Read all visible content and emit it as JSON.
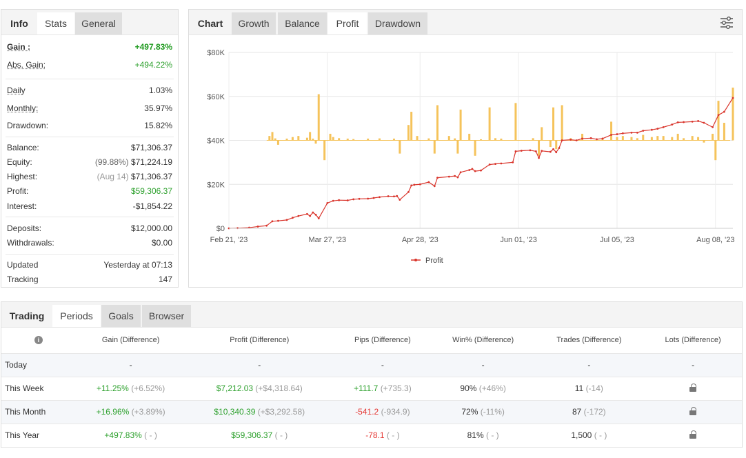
{
  "stats_panel": {
    "tabs": [
      {
        "label": "Info"
      },
      {
        "label": "Stats"
      },
      {
        "label": "General"
      }
    ],
    "gain": {
      "label": "Gain :",
      "value": "+497.83%"
    },
    "abs_gain": {
      "label": "Abs. Gain:",
      "value": "+494.22%"
    },
    "daily": {
      "label": "Daily",
      "value": "1.03%"
    },
    "monthly": {
      "label": "Monthly:",
      "value": "35.97%"
    },
    "drawdown": {
      "label": "Drawdown:",
      "value": "15.82%"
    },
    "balance": {
      "label": "Balance:",
      "value": "$71,306.37"
    },
    "equity": {
      "label": "Equity:",
      "note": "(99.88%)",
      "value": "$71,224.19"
    },
    "highest": {
      "label": "Highest:",
      "note": "(Aug 14)",
      "value": "$71,306.37"
    },
    "profit": {
      "label": "Profit:",
      "value": "$59,306.37"
    },
    "interest": {
      "label": "Interest:",
      "value": "-$1,854.22"
    },
    "deposits": {
      "label": "Deposits:",
      "value": "$12,000.00"
    },
    "withdrawals": {
      "label": "Withdrawals:",
      "value": "$0.00"
    },
    "updated": {
      "label": "Updated",
      "value": "Yesterday at 07:13"
    },
    "tracking": {
      "label": "Tracking",
      "value": "147"
    }
  },
  "chart_panel": {
    "tabs": [
      {
        "label": "Chart"
      },
      {
        "label": "Growth"
      },
      {
        "label": "Balance"
      },
      {
        "label": "Profit"
      },
      {
        "label": "Drawdown"
      }
    ],
    "icon": "filter-settings-icon"
  },
  "chart_data": {
    "type": "line",
    "xlabel": "",
    "ylabel": "",
    "x_ticks": [
      "Feb 21, '23",
      "Mar 27, '23",
      "Apr 28, '23",
      "Jun 01, '23",
      "Jul 05, '23",
      "Aug 08, '23"
    ],
    "y_ticks": [
      "$0",
      "$20K",
      "$40K",
      "$60K",
      "$80K"
    ],
    "ylim": [
      0,
      80000
    ],
    "grid": true,
    "legend": "bottom-center",
    "colors": {
      "line": "#d9342b",
      "bars": "#f5c35b"
    },
    "series": [
      {
        "name": "Profit",
        "type": "line",
        "points": [
          [
            "2023-02-21",
            0
          ],
          [
            "2023-02-24",
            100
          ],
          [
            "2023-02-28",
            300
          ],
          [
            "2023-03-03",
            800
          ],
          [
            "2023-03-06",
            1200
          ],
          [
            "2023-03-08",
            3200
          ],
          [
            "2023-03-10",
            3400
          ],
          [
            "2023-03-13",
            3800
          ],
          [
            "2023-03-15",
            4800
          ],
          [
            "2023-03-17",
            5600
          ],
          [
            "2023-03-20",
            6500
          ],
          [
            "2023-03-21",
            5600
          ],
          [
            "2023-03-22",
            7200
          ],
          [
            "2023-03-23",
            6200
          ],
          [
            "2023-03-24",
            4500
          ],
          [
            "2023-03-27",
            11500
          ],
          [
            "2023-03-29",
            12500
          ],
          [
            "2023-03-31",
            12800
          ],
          [
            "2023-04-03",
            12700
          ],
          [
            "2023-04-05",
            13200
          ],
          [
            "2023-04-07",
            13400
          ],
          [
            "2023-04-10",
            13500
          ],
          [
            "2023-04-12",
            13800
          ],
          [
            "2023-04-14",
            14200
          ],
          [
            "2023-04-17",
            14600
          ],
          [
            "2023-04-19",
            14500
          ],
          [
            "2023-04-20",
            14700
          ],
          [
            "2023-04-21",
            13000
          ],
          [
            "2023-04-24",
            16500
          ],
          [
            "2023-04-25",
            19500
          ],
          [
            "2023-04-26",
            19800
          ],
          [
            "2023-04-28",
            20000
          ],
          [
            "2023-05-01",
            21000
          ],
          [
            "2023-05-03",
            19200
          ],
          [
            "2023-05-04",
            23000
          ],
          [
            "2023-05-08",
            23500
          ],
          [
            "2023-05-10",
            23800
          ],
          [
            "2023-05-11",
            23200
          ],
          [
            "2023-05-12",
            25500
          ],
          [
            "2023-05-15",
            26500
          ],
          [
            "2023-05-16",
            27000
          ],
          [
            "2023-05-17",
            26000
          ],
          [
            "2023-05-19",
            26300
          ],
          [
            "2023-05-22",
            29000
          ],
          [
            "2023-05-24",
            29300
          ],
          [
            "2023-05-26",
            29500
          ],
          [
            "2023-05-30",
            30000
          ],
          [
            "2023-05-31",
            35000
          ],
          [
            "2023-06-02",
            35300
          ],
          [
            "2023-06-05",
            35500
          ],
          [
            "2023-06-07",
            35000
          ],
          [
            "2023-06-08",
            32000
          ],
          [
            "2023-06-09",
            35200
          ],
          [
            "2023-06-12",
            34800
          ],
          [
            "2023-06-13",
            36000
          ],
          [
            "2023-06-14",
            34600
          ],
          [
            "2023-06-15",
            36500
          ],
          [
            "2023-06-16",
            40000
          ],
          [
            "2023-06-19",
            40300
          ],
          [
            "2023-06-21",
            40000
          ],
          [
            "2023-06-23",
            40800
          ],
          [
            "2023-06-26",
            41000
          ],
          [
            "2023-06-28",
            40500
          ],
          [
            "2023-06-30",
            40800
          ],
          [
            "2023-07-03",
            42500
          ],
          [
            "2023-07-05",
            42800
          ],
          [
            "2023-07-07",
            43200
          ],
          [
            "2023-07-10",
            43500
          ],
          [
            "2023-07-12",
            43500
          ],
          [
            "2023-07-14",
            44400
          ],
          [
            "2023-07-17",
            44800
          ],
          [
            "2023-07-19",
            45300
          ],
          [
            "2023-07-21",
            46000
          ],
          [
            "2023-07-24",
            47200
          ],
          [
            "2023-07-26",
            48200
          ],
          [
            "2023-07-28",
            48300
          ],
          [
            "2023-07-31",
            48500
          ],
          [
            "2023-08-02",
            48800
          ],
          [
            "2023-08-04",
            48000
          ],
          [
            "2023-08-07",
            46000
          ],
          [
            "2023-08-09",
            51500
          ],
          [
            "2023-08-11",
            53000
          ],
          [
            "2023-08-14",
            59300
          ]
        ]
      },
      {
        "type": "bar",
        "baseline": 40000,
        "points": [
          [
            "2023-03-07",
            2000
          ],
          [
            "2023-03-08",
            3800
          ],
          [
            "2023-03-09",
            900
          ],
          [
            "2023-03-10",
            -2000
          ],
          [
            "2023-03-13",
            800
          ],
          [
            "2023-03-15",
            1500
          ],
          [
            "2023-03-17",
            2000
          ],
          [
            "2023-03-20",
            1200
          ],
          [
            "2023-03-21",
            3800
          ],
          [
            "2023-03-22",
            800
          ],
          [
            "2023-03-24",
            21000
          ],
          [
            "2023-03-23",
            -1500
          ],
          [
            "2023-03-26",
            -9000
          ],
          [
            "2023-03-28",
            3000
          ],
          [
            "2023-03-29",
            1500
          ],
          [
            "2023-03-31",
            1000
          ],
          [
            "2023-04-03",
            800
          ],
          [
            "2023-04-05",
            600
          ],
          [
            "2023-04-10",
            800
          ],
          [
            "2023-04-14",
            900
          ],
          [
            "2023-04-19",
            800
          ],
          [
            "2023-04-21",
            -6000
          ],
          [
            "2023-04-24",
            7000
          ],
          [
            "2023-04-25",
            13000
          ],
          [
            "2023-04-27",
            2000
          ],
          [
            "2023-05-01",
            900
          ],
          [
            "2023-05-03",
            -6000
          ],
          [
            "2023-05-04",
            16000
          ],
          [
            "2023-05-08",
            2000
          ],
          [
            "2023-05-10",
            900
          ],
          [
            "2023-05-11",
            -6000
          ],
          [
            "2023-05-12",
            14000
          ],
          [
            "2023-05-15",
            3000
          ],
          [
            "2023-05-17",
            -7000
          ],
          [
            "2023-05-19",
            500
          ],
          [
            "2023-05-22",
            15000
          ],
          [
            "2023-05-24",
            1000
          ],
          [
            "2023-05-26",
            800
          ],
          [
            "2023-05-31",
            17000
          ],
          [
            "2023-06-06",
            1000
          ],
          [
            "2023-06-08",
            -7000
          ],
          [
            "2023-06-09",
            6000
          ],
          [
            "2023-06-12",
            -3000
          ],
          [
            "2023-06-13",
            15000
          ],
          [
            "2023-06-14",
            -4000
          ],
          [
            "2023-06-16",
            16000
          ],
          [
            "2023-06-19",
            1000
          ],
          [
            "2023-06-23",
            3000
          ],
          [
            "2023-06-30",
            1000
          ],
          [
            "2023-07-03",
            8500
          ],
          [
            "2023-07-05",
            1500
          ],
          [
            "2023-07-07",
            2000
          ],
          [
            "2023-07-10",
            1500
          ],
          [
            "2023-07-12",
            1000
          ],
          [
            "2023-07-14",
            2500
          ],
          [
            "2023-07-17",
            1500
          ],
          [
            "2023-07-19",
            2000
          ],
          [
            "2023-07-21",
            2000
          ],
          [
            "2023-07-24",
            1500
          ],
          [
            "2023-07-26",
            3000
          ],
          [
            "2023-07-28",
            1000
          ],
          [
            "2023-07-31",
            2000
          ],
          [
            "2023-08-02",
            1500
          ],
          [
            "2023-08-04",
            -1000
          ],
          [
            "2023-08-07",
            3000
          ],
          [
            "2023-08-08",
            -9000
          ],
          [
            "2023-08-09",
            18000
          ],
          [
            "2023-08-11",
            8000
          ],
          [
            "2023-08-14",
            24000
          ]
        ]
      }
    ]
  },
  "trading_panel": {
    "tabs": [
      {
        "label": "Trading"
      },
      {
        "label": "Periods"
      },
      {
        "label": "Goals"
      },
      {
        "label": "Browser"
      }
    ],
    "columns": [
      "Gain (Difference)",
      "Profit (Difference)",
      "Pips (Difference)",
      "Win% (Difference)",
      "Trades (Difference)",
      "Lots (Difference)"
    ],
    "info_icon": "info-icon",
    "rows": [
      {
        "period": "Today",
        "gain": "-",
        "gain_diff": "",
        "profit": "-",
        "profit_diff": "",
        "pips": "-",
        "pips_diff": "",
        "win": "-",
        "win_diff": "",
        "trades": "-",
        "trades_diff": "",
        "lots": "-"
      },
      {
        "period": "This Week",
        "gain": "+11.25%",
        "gain_diff": "(+6.52%)",
        "profit": "$7,212.03",
        "profit_diff": "(+$4,318.64)",
        "pips": "+111.7",
        "pips_diff": "(+735.3)",
        "win": "90%",
        "win_diff": "(+46%)",
        "trades": "11",
        "trades_diff": "(-14)",
        "lots": "lock-icon"
      },
      {
        "period": "This Month",
        "gain": "+16.96%",
        "gain_diff": "(+3.89%)",
        "profit": "$10,340.39",
        "profit_diff": "(+$3,292.58)",
        "pips": "-541.2",
        "pips_diff": "(-934.9)",
        "win": "72%",
        "win_diff": "(-11%)",
        "trades": "87",
        "trades_diff": "(-172)",
        "lots": "lock-icon"
      },
      {
        "period": "This Year",
        "gain": "+497.83%",
        "gain_diff": "( - )",
        "profit": "$59,306.37",
        "profit_diff": "( - )",
        "pips": "-78.1",
        "pips_diff": "( - )",
        "win": "81%",
        "win_diff": "( - )",
        "trades": "1,500",
        "trades_diff": "( - )",
        "lots": "lock-icon"
      }
    ]
  }
}
